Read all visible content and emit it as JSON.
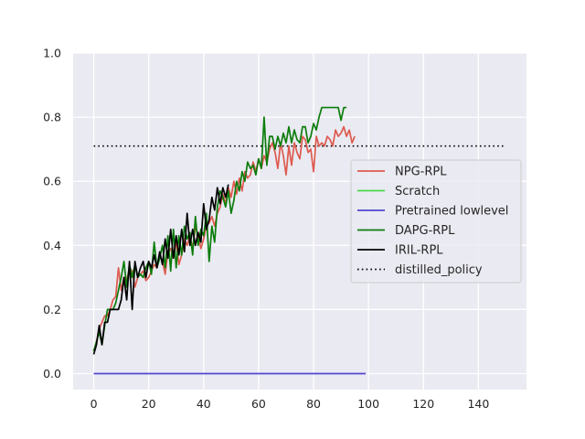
{
  "chart_data": {
    "type": "line",
    "title": "",
    "xlabel": "",
    "ylabel": "",
    "xlim": [
      -7.5,
      157.5
    ],
    "ylim": [
      -0.05,
      1.0
    ],
    "xticks": [
      0,
      20,
      40,
      60,
      80,
      100,
      120,
      140
    ],
    "yticks": [
      0.0,
      0.2,
      0.4,
      0.6,
      0.8,
      1.0
    ],
    "grid": true,
    "legend_position": "center-right",
    "series": [
      {
        "name": "NPG-RPL",
        "color": "#dd5a4e",
        "style": "solid",
        "x": [
          0,
          1,
          2,
          3,
          4,
          5,
          6,
          7,
          8,
          9,
          10,
          11,
          12,
          13,
          14,
          15,
          16,
          17,
          18,
          19,
          20,
          21,
          22,
          23,
          24,
          25,
          26,
          27,
          28,
          29,
          30,
          31,
          32,
          33,
          34,
          35,
          36,
          37,
          38,
          39,
          40,
          41,
          42,
          43,
          44,
          45,
          46,
          47,
          48,
          49,
          50,
          51,
          52,
          53,
          54,
          55,
          56,
          57,
          58,
          59,
          60,
          61,
          62,
          63,
          64,
          65,
          66,
          67,
          68,
          69,
          70,
          71,
          72,
          73,
          74,
          75,
          76,
          77,
          78,
          79,
          80,
          81,
          82,
          83,
          84,
          85,
          86,
          87,
          88,
          89,
          90,
          91,
          92,
          93,
          94,
          95
        ],
        "y": [
          0.07,
          0.1,
          0.14,
          0.16,
          0.18,
          0.18,
          0.2,
          0.23,
          0.24,
          0.33,
          0.26,
          0.3,
          0.29,
          0.33,
          0.32,
          0.27,
          0.3,
          0.31,
          0.32,
          0.29,
          0.3,
          0.32,
          0.34,
          0.33,
          0.37,
          0.35,
          0.31,
          0.38,
          0.39,
          0.36,
          0.41,
          0.34,
          0.37,
          0.42,
          0.4,
          0.43,
          0.39,
          0.46,
          0.43,
          0.39,
          0.42,
          0.46,
          0.47,
          0.49,
          0.46,
          0.5,
          0.52,
          0.56,
          0.53,
          0.58,
          0.55,
          0.6,
          0.56,
          0.61,
          0.57,
          0.63,
          0.61,
          0.62,
          0.66,
          0.63,
          0.67,
          0.64,
          0.68,
          0.66,
          0.7,
          0.72,
          0.69,
          0.64,
          0.72,
          0.68,
          0.62,
          0.71,
          0.65,
          0.72,
          0.69,
          0.67,
          0.74,
          0.73,
          0.69,
          0.7,
          0.63,
          0.74,
          0.71,
          0.72,
          0.71,
          0.74,
          0.73,
          0.71,
          0.76,
          0.74,
          0.75,
          0.77,
          0.74,
          0.76,
          0.72,
          0.74
        ]
      },
      {
        "name": "Scratch",
        "color": "#49d848",
        "style": "solid",
        "x": [],
        "y": []
      },
      {
        "name": "Pretrained lowlevel",
        "color": "#5146cf",
        "style": "solid",
        "x": [
          0,
          99
        ],
        "y": [
          0.0,
          0.0
        ]
      },
      {
        "name": "DAPG-RPL",
        "color": "#0b7d0b",
        "style": "solid",
        "x": [
          0,
          1,
          2,
          3,
          4,
          5,
          6,
          7,
          8,
          9,
          10,
          11,
          12,
          13,
          14,
          15,
          16,
          17,
          18,
          19,
          20,
          21,
          22,
          23,
          24,
          25,
          26,
          27,
          28,
          29,
          30,
          31,
          32,
          33,
          34,
          35,
          36,
          37,
          38,
          39,
          40,
          41,
          42,
          43,
          44,
          45,
          46,
          47,
          48,
          49,
          50,
          51,
          52,
          53,
          54,
          55,
          56,
          57,
          58,
          59,
          60,
          61,
          62,
          63,
          64,
          65,
          66,
          67,
          68,
          69,
          70,
          71,
          72,
          73,
          74,
          75,
          76,
          77,
          78,
          79,
          80,
          81,
          82,
          83,
          84,
          85,
          86,
          87,
          88,
          89,
          90,
          91,
          92
        ],
        "y": [
          0.07,
          0.1,
          0.13,
          0.09,
          0.15,
          0.2,
          0.2,
          0.2,
          0.22,
          0.26,
          0.3,
          0.35,
          0.27,
          0.34,
          0.3,
          0.34,
          0.3,
          0.31,
          0.3,
          0.33,
          0.35,
          0.31,
          0.41,
          0.33,
          0.36,
          0.4,
          0.33,
          0.43,
          0.32,
          0.45,
          0.33,
          0.43,
          0.37,
          0.46,
          0.42,
          0.44,
          0.37,
          0.49,
          0.4,
          0.45,
          0.43,
          0.5,
          0.35,
          0.46,
          0.41,
          0.52,
          0.57,
          0.55,
          0.52,
          0.57,
          0.5,
          0.54,
          0.6,
          0.57,
          0.63,
          0.6,
          0.66,
          0.64,
          0.65,
          0.62,
          0.67,
          0.64,
          0.8,
          0.65,
          0.74,
          0.74,
          0.7,
          0.74,
          0.71,
          0.75,
          0.72,
          0.77,
          0.72,
          0.76,
          0.73,
          0.72,
          0.77,
          0.77,
          0.72,
          0.74,
          0.78,
          0.76,
          0.8,
          0.83,
          0.83,
          0.83,
          0.83,
          0.83,
          0.83,
          0.83,
          0.79,
          0.83,
          0.83
        ]
      },
      {
        "name": "IRIL-RPL",
        "color": "#000000",
        "style": "solid",
        "x": [
          0,
          1,
          2,
          3,
          4,
          5,
          6,
          7,
          8,
          9,
          10,
          11,
          12,
          13,
          14,
          15,
          16,
          17,
          18,
          19,
          20,
          21,
          22,
          23,
          24,
          25,
          26,
          27,
          28,
          29,
          30,
          31,
          32,
          33,
          34,
          35,
          36,
          37,
          38,
          39,
          40,
          41,
          42,
          43,
          44,
          45,
          46,
          47,
          48,
          49
        ],
        "y": [
          0.06,
          0.09,
          0.15,
          0.09,
          0.16,
          0.16,
          0.2,
          0.2,
          0.2,
          0.2,
          0.23,
          0.3,
          0.23,
          0.35,
          0.2,
          0.35,
          0.3,
          0.33,
          0.35,
          0.3,
          0.35,
          0.33,
          0.37,
          0.33,
          0.38,
          0.34,
          0.42,
          0.36,
          0.45,
          0.36,
          0.43,
          0.37,
          0.45,
          0.38,
          0.5,
          0.4,
          0.45,
          0.4,
          0.44,
          0.41,
          0.53,
          0.45,
          0.48,
          0.55,
          0.51,
          0.58,
          0.53,
          0.58,
          0.55,
          0.59
        ]
      },
      {
        "name": "distilled_policy",
        "color": "#000000",
        "style": "dotted",
        "x": [
          0,
          150
        ],
        "y": [
          0.71,
          0.71
        ]
      }
    ]
  }
}
